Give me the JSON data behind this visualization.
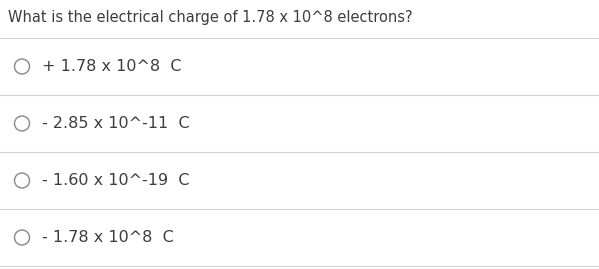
{
  "question": "What is the electrical charge of 1.78 x 10^8 electrons?",
  "option_texts": [
    "+ 1.78 x 10^8  C",
    "- 2.85 x 10^-11  C",
    "- 1.60 x 10^-19  C",
    "- 1.78 x 10^8  C"
  ],
  "background_color": "#ffffff",
  "text_color": "#3d3d3d",
  "question_fontsize": 10.5,
  "option_fontsize": 11.5,
  "line_color": "#d0d0d0",
  "circle_color": "#888888"
}
